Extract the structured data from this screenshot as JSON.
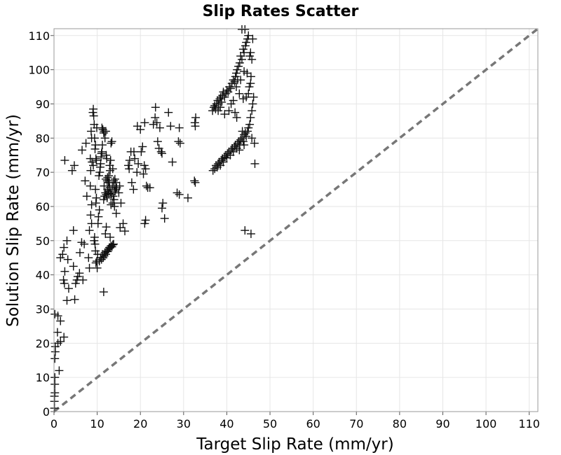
{
  "chart_data": {
    "type": "scatter",
    "title": "Slip Rates Scatter",
    "xlabel": "Target Slip Rate (mm/yr)",
    "ylabel": "Solution Slip Rate (mm/yr)",
    "xlim": [
      0,
      112
    ],
    "ylim": [
      0,
      112
    ],
    "xticks": [
      0,
      10,
      20,
      30,
      40,
      50,
      60,
      70,
      80,
      90,
      100,
      110
    ],
    "yticks": [
      0,
      10,
      20,
      30,
      40,
      50,
      60,
      70,
      80,
      90,
      100,
      110
    ],
    "grid": true,
    "marker": "plus",
    "marker_color": "#111111",
    "reference_line": {
      "style": "dashed",
      "color": "#777777",
      "from": [
        0,
        0
      ],
      "to": [
        112,
        112
      ]
    },
    "points": [
      [
        0.1,
        1
      ],
      [
        0.1,
        3
      ],
      [
        0.1,
        4.5
      ],
      [
        0.2,
        5.5
      ],
      [
        0.2,
        8
      ],
      [
        0.2,
        10
      ],
      [
        0.2,
        15.5
      ],
      [
        0.3,
        17.5
      ],
      [
        0.3,
        19
      ],
      [
        0.2,
        28.5
      ],
      [
        0.9,
        28
      ],
      [
        0.8,
        23.2
      ],
      [
        1.5,
        26.5
      ],
      [
        1.5,
        20.5
      ],
      [
        1.2,
        12
      ],
      [
        2.3,
        21.8
      ],
      [
        0.9,
        20
      ],
      [
        1.5,
        45
      ],
      [
        2,
        46
      ],
      [
        2.3,
        48
      ],
      [
        2.2,
        38.5
      ],
      [
        2.5,
        41
      ],
      [
        2.4,
        37.5
      ],
      [
        3,
        50
      ],
      [
        3.2,
        44.5
      ],
      [
        3.4,
        36
      ],
      [
        3,
        32.5
      ],
      [
        2.5,
        73.5
      ],
      [
        4.5,
        53
      ],
      [
        4.2,
        70.5
      ],
      [
        4.7,
        72
      ],
      [
        4.5,
        42.5
      ],
      [
        4.8,
        32.8
      ],
      [
        5,
        37.5
      ],
      [
        5.3,
        38.5
      ],
      [
        5.5,
        39.5
      ],
      [
        5.9,
        40.5
      ],
      [
        6,
        46.5
      ],
      [
        6.4,
        49.5
      ],
      [
        6.7,
        38.5
      ],
      [
        7,
        49
      ],
      [
        7.2,
        67.5
      ],
      [
        7.6,
        63
      ],
      [
        7.4,
        78.5
      ],
      [
        6.5,
        76.5
      ],
      [
        8,
        45
      ],
      [
        8.2,
        53
      ],
      [
        8.2,
        42
      ],
      [
        8.5,
        57.5
      ],
      [
        8.4,
        66
      ],
      [
        8.5,
        70.5
      ],
      [
        8.4,
        74
      ],
      [
        8.6,
        82
      ],
      [
        8.7,
        80
      ],
      [
        8.8,
        73
      ],
      [
        8.7,
        60.5
      ],
      [
        8.7,
        55
      ],
      [
        9,
        87.5
      ],
      [
        9.1,
        88.5
      ],
      [
        9.2,
        86.5
      ],
      [
        9.3,
        84
      ],
      [
        9.1,
        72
      ],
      [
        9.4,
        80
      ],
      [
        9.5,
        76.8
      ],
      [
        9.6,
        78
      ],
      [
        9.7,
        74
      ],
      [
        9.8,
        73.5
      ],
      [
        9.9,
        83
      ],
      [
        9.6,
        65
      ],
      [
        9.7,
        61
      ],
      [
        9.8,
        62.5
      ],
      [
        9.4,
        51
      ],
      [
        9.3,
        50
      ],
      [
        9.5,
        49
      ],
      [
        9.6,
        47
      ],
      [
        9.7,
        43.5
      ],
      [
        9.9,
        44
      ],
      [
        10,
        42
      ],
      [
        10.1,
        46
      ],
      [
        10.2,
        55
      ],
      [
        10.3,
        57
      ],
      [
        10.5,
        59
      ],
      [
        10.4,
        69
      ],
      [
        10.6,
        70
      ],
      [
        10.7,
        71.5
      ],
      [
        10.8,
        72.5
      ],
      [
        10.9,
        74.5
      ],
      [
        11,
        75.5
      ],
      [
        11.1,
        76
      ],
      [
        11.2,
        78
      ],
      [
        11.3,
        82.5
      ],
      [
        11.1,
        83
      ],
      [
        11.5,
        81.5
      ],
      [
        11.6,
        82
      ],
      [
        11.8,
        80
      ],
      [
        12,
        82
      ],
      [
        12.1,
        75
      ],
      [
        12.2,
        74
      ],
      [
        12.3,
        67.5
      ],
      [
        12.4,
        65
      ],
      [
        12.6,
        67
      ],
      [
        12.7,
        69
      ],
      [
        12.9,
        72
      ],
      [
        13,
        70.5
      ],
      [
        13.1,
        73.5
      ],
      [
        13.2,
        78.5
      ],
      [
        13.4,
        79
      ],
      [
        13.6,
        71
      ],
      [
        13.8,
        67.5
      ],
      [
        13.9,
        66
      ],
      [
        14.1,
        68
      ],
      [
        14.3,
        65
      ],
      [
        11.5,
        35
      ],
      [
        11.9,
        52
      ],
      [
        12.1,
        54
      ],
      [
        13,
        51
      ],
      [
        10.5,
        44
      ],
      [
        10.8,
        45
      ],
      [
        11,
        44.5
      ],
      [
        11.2,
        46
      ],
      [
        11.4,
        45
      ],
      [
        11.6,
        45.5
      ],
      [
        11.8,
        46.5
      ],
      [
        12,
        46
      ],
      [
        12.2,
        47
      ],
      [
        12.4,
        46.8
      ],
      [
        12.6,
        47.5
      ],
      [
        12.8,
        48
      ],
      [
        13,
        48
      ],
      [
        13.2,
        48.5
      ],
      [
        13.4,
        48.2
      ],
      [
        13.6,
        48.8
      ],
      [
        13.8,
        49
      ],
      [
        11.5,
        62
      ],
      [
        11.7,
        63
      ],
      [
        11.9,
        64
      ],
      [
        12.1,
        63.5
      ],
      [
        12.3,
        62.5
      ],
      [
        12.5,
        64.5
      ],
      [
        12.7,
        63.8
      ],
      [
        12.9,
        65.5
      ],
      [
        13.1,
        64
      ],
      [
        13.3,
        63.5
      ],
      [
        13.5,
        66
      ],
      [
        13.7,
        63
      ],
      [
        13.9,
        62
      ],
      [
        14.1,
        64.5
      ],
      [
        14.3,
        67
      ],
      [
        14.5,
        65.5
      ],
      [
        11.6,
        66
      ],
      [
        12,
        68
      ],
      [
        12.4,
        68.5
      ],
      [
        12.8,
        67
      ],
      [
        13.2,
        60.5
      ],
      [
        13.6,
        61
      ],
      [
        14,
        60
      ],
      [
        14.4,
        58
      ],
      [
        15,
        64
      ],
      [
        15.2,
        66
      ],
      [
        15.5,
        61
      ],
      [
        15.3,
        53.8
      ],
      [
        16,
        55
      ],
      [
        16.4,
        52.8
      ],
      [
        17.2,
        72
      ],
      [
        17.5,
        73.5
      ],
      [
        17.8,
        76
      ],
      [
        17.4,
        71
      ],
      [
        18,
        67
      ],
      [
        18.4,
        65
      ],
      [
        18.5,
        76
      ],
      [
        18.7,
        74
      ],
      [
        19.2,
        70
      ],
      [
        19.5,
        72.5
      ],
      [
        19.3,
        83.5
      ],
      [
        20,
        82.5
      ],
      [
        20.2,
        76
      ],
      [
        20.5,
        77.5
      ],
      [
        20.7,
        69.5
      ],
      [
        20.9,
        72
      ],
      [
        21.2,
        71
      ],
      [
        21,
        84.5
      ],
      [
        21.4,
        66
      ],
      [
        21.7,
        65.5
      ],
      [
        21.2,
        56
      ],
      [
        21,
        55
      ],
      [
        22.2,
        65.5
      ],
      [
        23,
        84
      ],
      [
        23.4,
        86
      ],
      [
        23.5,
        89
      ],
      [
        23.8,
        84.5
      ],
      [
        24,
        79
      ],
      [
        24.3,
        77
      ],
      [
        24.5,
        83
      ],
      [
        24.8,
        76
      ],
      [
        25,
        75.5
      ],
      [
        25.2,
        61
      ],
      [
        25,
        59.5
      ],
      [
        25.6,
        56.5
      ],
      [
        26.5,
        87.5
      ],
      [
        27,
        83.5
      ],
      [
        27.4,
        73
      ],
      [
        28.5,
        64
      ],
      [
        29,
        63.5
      ],
      [
        28.8,
        79
      ],
      [
        29.2,
        78.5
      ],
      [
        29,
        83
      ],
      [
        31,
        62.5
      ],
      [
        32.5,
        67.5
      ],
      [
        32.7,
        67
      ],
      [
        32.6,
        84.5
      ],
      [
        32.8,
        86
      ],
      [
        32.7,
        83.5
      ],
      [
        36.8,
        70.5
      ],
      [
        37.2,
        71
      ],
      [
        37.5,
        72
      ],
      [
        37.8,
        71.5
      ],
      [
        38,
        72.5
      ],
      [
        38.3,
        73
      ],
      [
        38.5,
        72
      ],
      [
        38.8,
        73.5
      ],
      [
        39,
        74
      ],
      [
        39.2,
        73
      ],
      [
        39.5,
        74.5
      ],
      [
        39.8,
        75
      ],
      [
        40,
        74.2
      ],
      [
        40.2,
        75.5
      ],
      [
        40.5,
        76
      ],
      [
        40.8,
        75
      ],
      [
        41,
        76.5
      ],
      [
        41.3,
        77
      ],
      [
        41.5,
        76
      ],
      [
        41.8,
        77.5
      ],
      [
        42,
        78
      ],
      [
        42.3,
        77
      ],
      [
        42.5,
        78.5
      ],
      [
        42.8,
        79
      ],
      [
        43,
        78
      ],
      [
        43.2,
        79.5
      ],
      [
        43.5,
        80
      ],
      [
        43.8,
        79
      ],
      [
        44,
        81
      ],
      [
        44.3,
        81.5
      ],
      [
        44.5,
        80.5
      ],
      [
        44.8,
        82
      ],
      [
        45,
        83
      ],
      [
        45.3,
        84
      ],
      [
        45.5,
        86
      ],
      [
        45.8,
        88
      ],
      [
        46,
        90
      ],
      [
        46.2,
        92
      ],
      [
        46.4,
        78.5
      ],
      [
        46.5,
        72.5
      ],
      [
        45.8,
        80
      ],
      [
        44.2,
        53
      ],
      [
        45.6,
        52
      ],
      [
        44,
        78
      ],
      [
        43.6,
        82
      ],
      [
        42.9,
        76.5
      ],
      [
        36.7,
        88
      ],
      [
        37,
        89
      ],
      [
        37.2,
        89.5
      ],
      [
        37.4,
        88.5
      ],
      [
        37.6,
        90
      ],
      [
        37.9,
        91
      ],
      [
        38.1,
        90
      ],
      [
        38.4,
        91.5
      ],
      [
        38.6,
        92
      ],
      [
        38.8,
        90.5
      ],
      [
        39,
        92.5
      ],
      [
        39.2,
        93.5
      ],
      [
        39.5,
        92
      ],
      [
        39.8,
        93
      ],
      [
        40,
        94
      ],
      [
        40.3,
        93.5
      ],
      [
        40.6,
        95
      ],
      [
        40.9,
        94.5
      ],
      [
        41.2,
        96
      ],
      [
        41.5,
        97
      ],
      [
        41.8,
        96.5
      ],
      [
        42,
        98
      ],
      [
        42.2,
        99
      ],
      [
        42.4,
        100
      ],
      [
        42.7,
        101
      ],
      [
        43,
        102
      ],
      [
        43.2,
        104
      ],
      [
        43.5,
        103
      ],
      [
        43.8,
        106
      ],
      [
        44,
        105
      ],
      [
        44.3,
        107
      ],
      [
        44.5,
        108
      ],
      [
        44.8,
        109
      ],
      [
        45,
        110
      ],
      [
        45.3,
        104
      ],
      [
        45.5,
        105
      ],
      [
        45.8,
        103
      ],
      [
        46,
        109
      ],
      [
        44.2,
        113
      ],
      [
        43.5,
        112
      ],
      [
        42.5,
        97
      ],
      [
        42.2,
        95
      ],
      [
        41.5,
        91
      ],
      [
        41,
        90
      ],
      [
        40.5,
        88
      ],
      [
        39.5,
        87
      ],
      [
        38.5,
        89
      ],
      [
        38,
        88
      ],
      [
        43.8,
        91.5
      ],
      [
        44.5,
        92
      ],
      [
        45,
        93
      ],
      [
        45.2,
        95
      ],
      [
        45.5,
        96
      ],
      [
        45.6,
        98
      ],
      [
        44.7,
        99
      ],
      [
        44,
        99.5
      ],
      [
        43.2,
        97
      ],
      [
        42.9,
        93
      ],
      [
        41.9,
        87.5
      ],
      [
        42.3,
        86
      ]
    ]
  }
}
